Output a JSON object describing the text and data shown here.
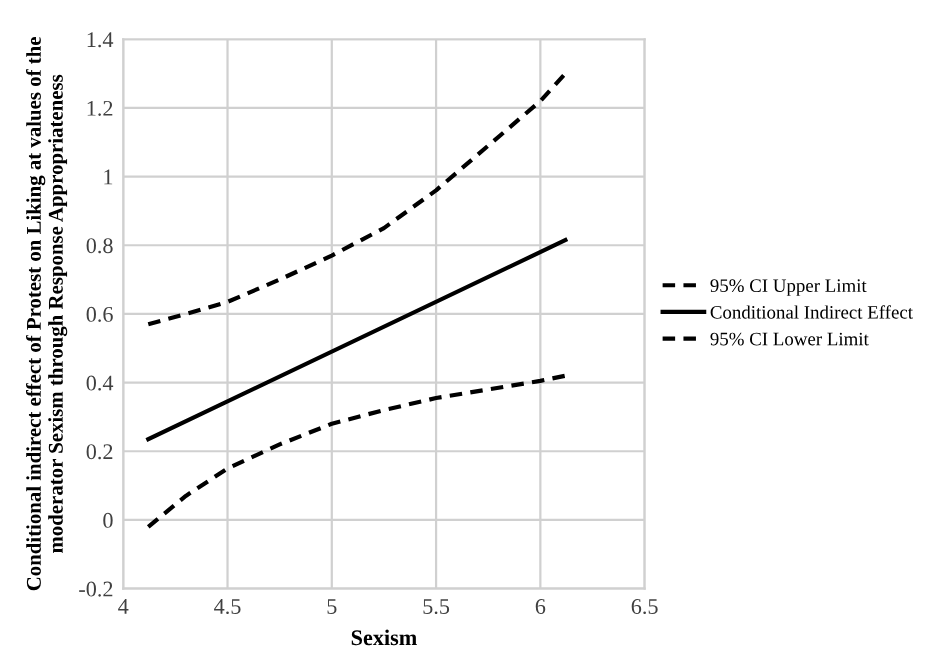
{
  "chart_data": {
    "type": "line",
    "xlabel": "Sexism",
    "ylabel": "Conditional indirect effect of Protest on Liking at values of the moderator Sexism through Response Appropriateness",
    "xlim": [
      4,
      6.5
    ],
    "xticks": [
      4,
      4.5,
      5,
      5.5,
      6,
      6.5
    ],
    "ylim": [
      -0.2,
      1.4
    ],
    "yticks": [
      -0.2,
      0,
      0.2,
      0.4,
      0.6,
      0.8,
      1,
      1.2,
      1.4
    ],
    "grid": true,
    "legend": "right",
    "series": [
      {
        "name": "95% CI Upper Limit",
        "color": "#000000",
        "line_style": "dashed",
        "x": [
          4.12,
          4.3,
          4.5,
          4.75,
          5.0,
          5.25,
          5.5,
          5.75,
          6.0,
          6.12
        ],
        "values": [
          0.57,
          0.6,
          0.635,
          0.7,
          0.77,
          0.85,
          0.96,
          1.09,
          1.22,
          1.3
        ]
      },
      {
        "name": "Conditional Indirect Effect",
        "color": "#000000",
        "line_style": "solid",
        "x": [
          4.12,
          6.12
        ],
        "values": [
          0.235,
          0.815
        ]
      },
      {
        "name": "95% CI Lower Limit",
        "color": "#000000",
        "line_style": "dashed",
        "x": [
          4.12,
          4.3,
          4.5,
          4.75,
          5.0,
          5.25,
          5.5,
          5.75,
          6.0,
          6.12
        ],
        "values": [
          -0.02,
          0.07,
          0.15,
          0.22,
          0.28,
          0.32,
          0.355,
          0.38,
          0.405,
          0.42
        ]
      }
    ]
  }
}
